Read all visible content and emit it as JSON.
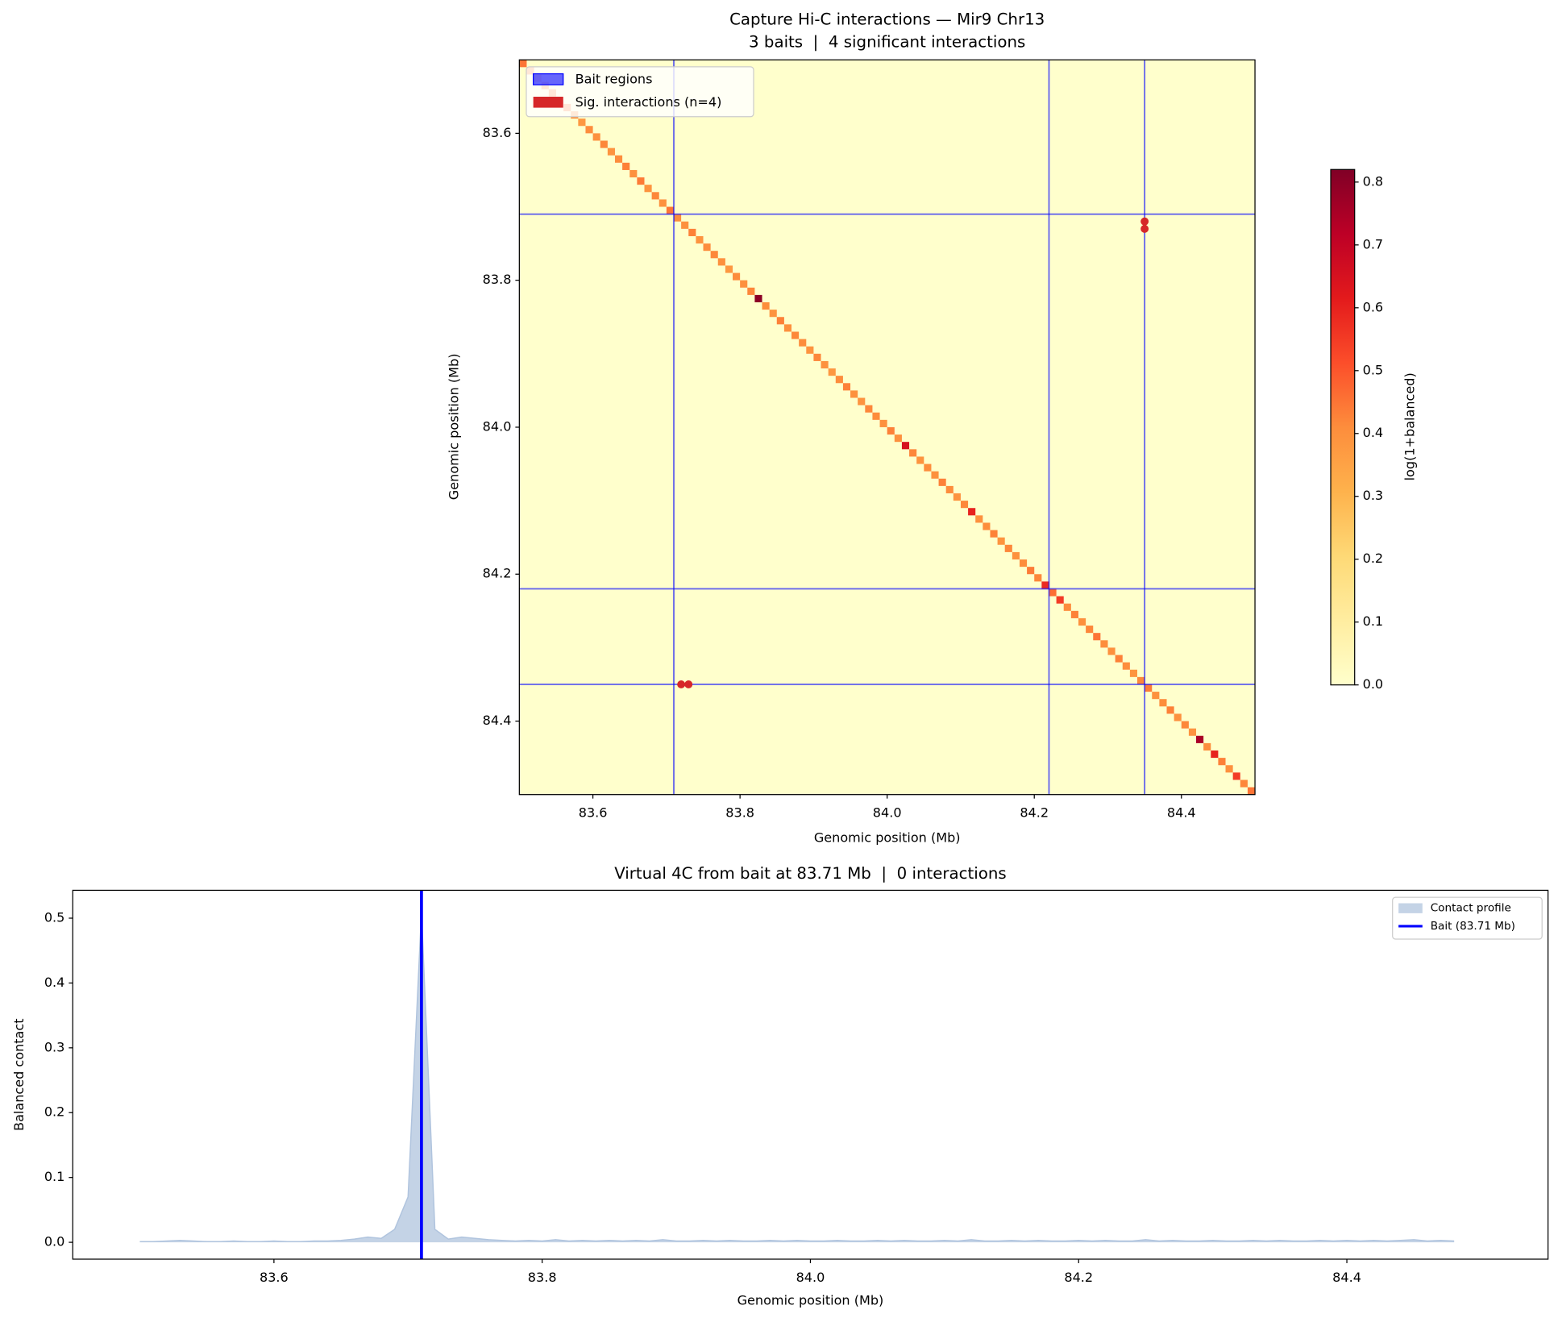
{
  "chart_data": [
    {
      "type": "heatmap",
      "title": "Capture Hi-C interactions — Mir9 Chr13",
      "subtitle": "3 baits  |  4 significant interactions",
      "xlabel": "Genomic position (Mb)",
      "ylabel": "Genomic position (Mb)",
      "xlim": [
        83.5,
        84.5
      ],
      "ylim": [
        84.5,
        83.5
      ],
      "xticks": [
        83.6,
        83.8,
        {
          "value": 84,
          "label": "84.0"
        },
        84.2,
        84.4
      ],
      "yticks": [
        83.6,
        83.8,
        {
          "value": 84,
          "label": "84.0"
        },
        84.2,
        84.4
      ],
      "colormap": "YlOrRd",
      "clim": [
        0,
        0.82
      ],
      "colorbar_label": "log(1+balanced)",
      "cticks": [
        {
          "value": 0,
          "label": "0.0"
        },
        0.1,
        0.2,
        0.3,
        0.4,
        0.5,
        0.6,
        0.7,
        0.8
      ],
      "background_value": 0,
      "bins": [
        83.5,
        83.51,
        83.52,
        83.53,
        83.54,
        83.55,
        83.56,
        83.57,
        83.58,
        83.59,
        83.6,
        83.61,
        83.62,
        83.63,
        83.64,
        83.65,
        83.66,
        83.67,
        83.68,
        83.69,
        83.7,
        83.71,
        83.72,
        83.73,
        83.74,
        83.75,
        83.76,
        83.77,
        83.78,
        83.79,
        83.8,
        83.81,
        83.82,
        83.83,
        83.84,
        83.85,
        83.86,
        83.87,
        83.88,
        83.89,
        83.9,
        83.91,
        83.92,
        83.93,
        83.94,
        83.95,
        83.96,
        83.97,
        83.98,
        83.99,
        84,
        84.01,
        84.02,
        84.03,
        84.04,
        84.05,
        84.06,
        84.07,
        84.08,
        84.09,
        84.1,
        84.11,
        84.12,
        84.13,
        84.14,
        84.15,
        84.16,
        84.17,
        84.18,
        84.19,
        84.2,
        84.21,
        84.22,
        84.23,
        84.24,
        84.25,
        84.26,
        84.27,
        84.28,
        84.29,
        84.3,
        84.31,
        84.32,
        84.33,
        84.34,
        84.35,
        84.36,
        84.37,
        84.38,
        84.39,
        84.4,
        84.41,
        84.42,
        84.43,
        84.44,
        84.45,
        84.46,
        84.47,
        84.48,
        84.49,
        84.5
      ],
      "diagonal": [
        0.45,
        0.42,
        0.38,
        0.4,
        0.41,
        0.39,
        0.43,
        0.4,
        0.38,
        0.41,
        0.4,
        0.42,
        0.39,
        0.41,
        0.43,
        0.4,
        0.44,
        0.39,
        0.42,
        0.4,
        0.45,
        0.41,
        0.4,
        0.43,
        0.39,
        0.41,
        0.42,
        0.4,
        0.38,
        0.41,
        0.4,
        0.42,
        0.8,
        0.41,
        0.39,
        0.43,
        0.4,
        0.42,
        0.41,
        0.39,
        0.42,
        0.4,
        0.38,
        0.41,
        0.43,
        0.4,
        0.39,
        0.42,
        0.41,
        0.4,
        0.43,
        0.4,
        0.65,
        0.42,
        0.39,
        0.41,
        0.4,
        0.43,
        0.41,
        0.39,
        0.42,
        0.6,
        0.4,
        0.41,
        0.43,
        0.39,
        0.42,
        0.4,
        0.41,
        0.44,
        0.42,
        0.58,
        0.46,
        0.55,
        0.41,
        0.43,
        0.4,
        0.42,
        0.45,
        0.41,
        0.4,
        0.43,
        0.41,
        0.39,
        0.42,
        0.44,
        0.4,
        0.41,
        0.43,
        0.4,
        0.42,
        0.39,
        0.75,
        0.41,
        0.6,
        0.43,
        0.4,
        0.55,
        0.42,
        0.45
      ],
      "baits": {
        "name": "Bait regions",
        "color": "#0000ff",
        "positions": [
          83.71,
          84.22,
          84.35
        ]
      },
      "interactions": {
        "name": "Sig. interactions (n=4)",
        "color": "#d62728",
        "x": [
          84.35,
          84.35,
          83.72,
          83.73
        ],
        "y": [
          83.72,
          83.73,
          84.35,
          84.35
        ]
      },
      "legend": "upper left"
    },
    {
      "type": "area",
      "title": "Virtual 4C from bait at 83.71 Mb  |  0 interactions",
      "xlabel": "Genomic position (Mb)",
      "ylabel": "Balanced contact",
      "xlim": [
        83.45,
        84.55
      ],
      "ylim": [
        -0.026,
        0.543
      ],
      "xticks": [
        83.6,
        83.8,
        {
          "value": 84,
          "label": "84.0"
        },
        84.2,
        84.4
      ],
      "yticks": [
        {
          "value": 0,
          "label": "0.0"
        },
        0.1,
        0.2,
        0.3,
        0.4,
        0.5
      ],
      "series": [
        {
          "name": "Contact profile",
          "color": "#b0c4de",
          "x": [
            83.5,
            83.51,
            83.52,
            83.53,
            83.54,
            83.55,
            83.56,
            83.57,
            83.58,
            83.59,
            83.6,
            83.61,
            83.62,
            83.63,
            83.64,
            83.65,
            83.66,
            83.67,
            83.68,
            83.69,
            83.7,
            83.71,
            83.72,
            83.73,
            83.74,
            83.75,
            83.76,
            83.77,
            83.78,
            83.79,
            83.8,
            83.81,
            83.82,
            83.83,
            83.84,
            83.85,
            83.86,
            83.87,
            83.88,
            83.89,
            83.9,
            83.91,
            83.92,
            83.93,
            83.94,
            83.95,
            83.96,
            83.97,
            83.98,
            83.99,
            84,
            84.01,
            84.02,
            84.03,
            84.04,
            84.05,
            84.06,
            84.07,
            84.08,
            84.09,
            84.1,
            84.11,
            84.12,
            84.13,
            84.14,
            84.15,
            84.16,
            84.17,
            84.18,
            84.19,
            84.2,
            84.21,
            84.22,
            84.23,
            84.24,
            84.25,
            84.26,
            84.27,
            84.28,
            84.29,
            84.3,
            84.31,
            84.32,
            84.33,
            84.34,
            84.35,
            84.36,
            84.37,
            84.38,
            84.39,
            84.4,
            84.41,
            84.42,
            84.43,
            84.44,
            84.45,
            84.46,
            84.47,
            84.48
          ],
          "values": [
            0.001,
            0.001,
            0.002,
            0.003,
            0.002,
            0.001,
            0.001,
            0.002,
            0.001,
            0.001,
            0.002,
            0.001,
            0.001,
            0.002,
            0.002,
            0.003,
            0.005,
            0.008,
            0.006,
            0.02,
            0.07,
            0.51,
            0.02,
            0.005,
            0.008,
            0.006,
            0.004,
            0.003,
            0.002,
            0.003,
            0.002,
            0.004,
            0.002,
            0.003,
            0.002,
            0.003,
            0.002,
            0.003,
            0.002,
            0.004,
            0.002,
            0.002,
            0.003,
            0.002,
            0.003,
            0.002,
            0.002,
            0.003,
            0.002,
            0.003,
            0.002,
            0.002,
            0.003,
            0.002,
            0.002,
            0.003,
            0.002,
            0.003,
            0.002,
            0.002,
            0.003,
            0.002,
            0.004,
            0.002,
            0.002,
            0.003,
            0.002,
            0.003,
            0.002,
            0.002,
            0.003,
            0.002,
            0.003,
            0.002,
            0.002,
            0.004,
            0.002,
            0.003,
            0.002,
            0.002,
            0.003,
            0.002,
            0.002,
            0.003,
            0.002,
            0.003,
            0.002,
            0.002,
            0.003,
            0.002,
            0.003,
            0.002,
            0.003,
            0.002,
            0.003,
            0.004,
            0.002,
            0.003,
            0.002
          ]
        }
      ],
      "bait_line": {
        "name": "Bait (83.71 Mb)",
        "x": 83.71,
        "color": "#0000ff"
      },
      "legend": "upper right"
    }
  ]
}
